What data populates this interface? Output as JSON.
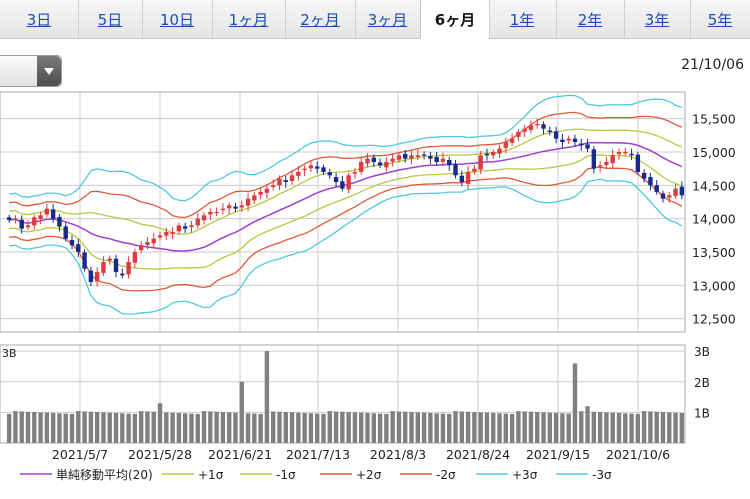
{
  "tabs": [
    {
      "label": "3日",
      "active": false
    },
    {
      "label": "5日",
      "active": false
    },
    {
      "label": "10日",
      "active": false
    },
    {
      "label": "1ヶ月",
      "active": false
    },
    {
      "label": "2ヶ月",
      "active": false
    },
    {
      "label": "3ヶ月",
      "active": false
    },
    {
      "label": "6ヶ月",
      "active": true
    },
    {
      "label": "1年",
      "active": false
    },
    {
      "label": "2年",
      "active": false
    },
    {
      "label": "3年",
      "active": false
    },
    {
      "label": "5年",
      "active": false
    }
  ],
  "header": {
    "date": "21/10/06"
  },
  "colors": {
    "up": "#e0393f",
    "down": "#1a2a8c",
    "ma": "#a040d0",
    "sigma1": "#b8c840",
    "sigma2": "#e05a3a",
    "sigma3": "#50c8e0",
    "volume": "#808080",
    "grid": "#cccccc"
  },
  "chart_data": {
    "type": "candlestick",
    "x_labels": [
      "2021/5/7",
      "2021/5/28",
      "2021/6/21",
      "2021/7/13",
      "2021/8/3",
      "2021/8/24",
      "2021/9/15",
      "2021/10/6"
    ],
    "price_axis": {
      "ticks": [
        "15,500",
        "15,000",
        "14,500",
        "14,000",
        "13,500",
        "13,000",
        "12,500"
      ],
      "tick_values": [
        15500,
        15000,
        14500,
        14000,
        13500,
        13000,
        12500
      ],
      "range": [
        12300,
        15900
      ]
    },
    "volume_axis": {
      "ticks": [
        "3B",
        "2B",
        "1B"
      ],
      "tick_values": [
        3,
        2,
        1
      ],
      "range": [
        0,
        3.2
      ],
      "unit": "B"
    },
    "legend": [
      {
        "label": "単純移動平均(20)",
        "color": "#a040d0"
      },
      {
        "label": "+1σ",
        "color": "#b8c840"
      },
      {
        "label": "-1σ",
        "color": "#b8c840"
      },
      {
        "label": "+2σ",
        "color": "#e05a3a"
      },
      {
        "label": "-2σ",
        "color": "#e05a3a"
      },
      {
        "label": "+3σ",
        "color": "#50c8e0"
      },
      {
        "label": "-3σ",
        "color": "#50c8e0"
      }
    ],
    "close": [
      13980,
      14000,
      13850,
      13900,
      14020,
      14050,
      14150,
      14000,
      13880,
      13700,
      13600,
      13500,
      13250,
      13050,
      13200,
      13350,
      13400,
      13200,
      13150,
      13350,
      13500,
      13600,
      13650,
      13700,
      13750,
      13800,
      13800,
      13900,
      13850,
      13900,
      14000,
      14050,
      14100,
      14100,
      14150,
      14200,
      14150,
      14200,
      14300,
      14350,
      14400,
      14450,
      14500,
      14600,
      14550,
      14650,
      14700,
      14750,
      14800,
      14750,
      14700,
      14650,
      14550,
      14450,
      14650,
      14700,
      14850,
      14900,
      14850,
      14800,
      14850,
      14900,
      14950,
      14900,
      14950,
      14950,
      14950,
      14900,
      14850,
      14900,
      14800,
      14650,
      14550,
      14700,
      14750,
      14950,
      14950,
      15000,
      15050,
      15150,
      15200,
      15300,
      15350,
      15400,
      15420,
      15350,
      15300,
      15200,
      15150,
      15200,
      15150,
      15100,
      15050,
      14750,
      14800,
      14850,
      14950,
      15000,
      15000,
      14950,
      14700,
      14600,
      14500,
      14400,
      14300,
      14350,
      14450,
      14350
    ]
  }
}
